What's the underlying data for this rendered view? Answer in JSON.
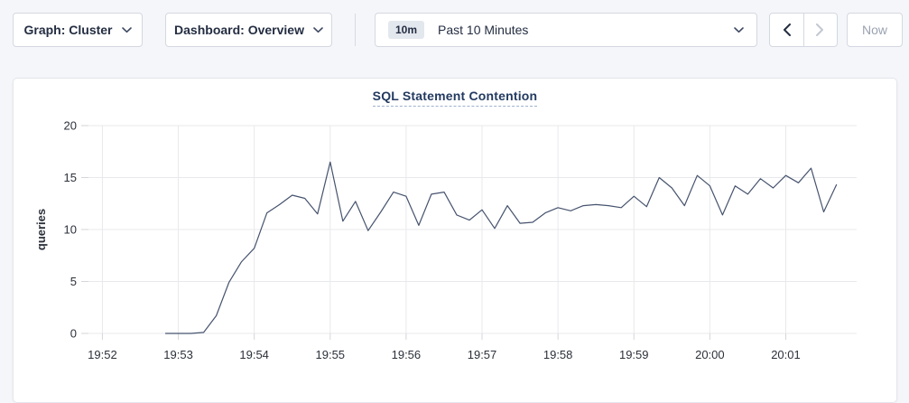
{
  "header": {
    "graph_dropdown": {
      "label": "Graph: Cluster"
    },
    "dashboard_dropdown": {
      "label": "Dashboard: Overview"
    },
    "time_picker": {
      "preset_badge": "10m",
      "label": "Past 10 Minutes"
    },
    "prev_button": {
      "enabled": true
    },
    "next_button": {
      "enabled": false
    },
    "now_button": {
      "label": "Now",
      "enabled": false
    }
  },
  "chart_data": {
    "type": "line",
    "title": "SQL Statement Contention",
    "xlabel": "",
    "ylabel": "queries",
    "ylim": [
      0,
      20
    ],
    "yticks": [
      0,
      5,
      10,
      15,
      20
    ],
    "xticks": [
      "19:52",
      "19:53",
      "19:54",
      "19:55",
      "19:56",
      "19:57",
      "19:58",
      "19:59",
      "20:00",
      "20:01"
    ],
    "x_window": [
      "19:51:49",
      "20:01:56"
    ],
    "grid": true,
    "legend": "none",
    "series": [
      {
        "name": "SQL Statement Contention",
        "color": "#46536e",
        "points": [
          [
            "19:52:50",
            0
          ],
          [
            "19:53:00",
            0
          ],
          [
            "19:53:10",
            0
          ],
          [
            "19:53:20",
            0.1
          ],
          [
            "19:53:30",
            1.7
          ],
          [
            "19:53:40",
            4.9
          ],
          [
            "19:53:50",
            6.9
          ],
          [
            "19:54:00",
            8.2
          ],
          [
            "19:54:10",
            11.6
          ],
          [
            "19:54:20",
            12.4
          ],
          [
            "19:54:30",
            13.3
          ],
          [
            "19:54:40",
            13.0
          ],
          [
            "19:54:50",
            11.5
          ],
          [
            "19:55:00",
            16.5
          ],
          [
            "19:55:10",
            10.8
          ],
          [
            "19:55:20",
            12.7
          ],
          [
            "19:55:30",
            9.9
          ],
          [
            "19:55:40",
            11.7
          ],
          [
            "19:55:50",
            13.6
          ],
          [
            "19:56:00",
            13.2
          ],
          [
            "19:56:10",
            10.4
          ],
          [
            "19:56:20",
            13.4
          ],
          [
            "19:56:30",
            13.6
          ],
          [
            "19:56:40",
            11.4
          ],
          [
            "19:56:50",
            10.9
          ],
          [
            "19:57:00",
            11.9
          ],
          [
            "19:57:10",
            10.1
          ],
          [
            "19:57:20",
            12.3
          ],
          [
            "19:57:30",
            10.6
          ],
          [
            "19:57:40",
            10.7
          ],
          [
            "19:57:50",
            11.6
          ],
          [
            "19:58:00",
            12.1
          ],
          [
            "19:58:10",
            11.8
          ],
          [
            "19:58:20",
            12.3
          ],
          [
            "19:58:30",
            12.4
          ],
          [
            "19:58:40",
            12.3
          ],
          [
            "19:58:50",
            12.1
          ],
          [
            "19:59:00",
            13.2
          ],
          [
            "19:59:10",
            12.2
          ],
          [
            "19:59:20",
            15.0
          ],
          [
            "19:59:30",
            14.0
          ],
          [
            "19:59:40",
            12.3
          ],
          [
            "19:59:50",
            15.2
          ],
          [
            "20:00:00",
            14.2
          ],
          [
            "20:00:10",
            11.4
          ],
          [
            "20:00:20",
            14.2
          ],
          [
            "20:00:30",
            13.4
          ],
          [
            "20:00:40",
            14.9
          ],
          [
            "20:00:50",
            14.0
          ],
          [
            "20:01:00",
            15.2
          ],
          [
            "20:01:10",
            14.5
          ],
          [
            "20:01:20",
            15.9
          ],
          [
            "20:01:30",
            11.7
          ],
          [
            "20:01:40",
            14.3
          ]
        ]
      }
    ]
  },
  "colors": {
    "page_background": "#f5f6fa",
    "panel_background": "#ffffff",
    "control_border": "#d4d8e0",
    "text_primary": "#242e42",
    "text_disabled": "#9aa3b2",
    "chart_title": "#233a60",
    "series_line": "#46536e",
    "gridline": "#e8e9ec"
  }
}
